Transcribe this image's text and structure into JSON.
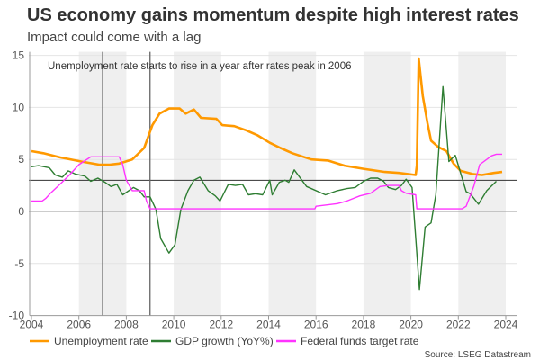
{
  "chart_data": {
    "type": "line",
    "title": "US economy gains momentum despite high interest rates",
    "subtitle": "Impact could come with a lag",
    "annotation": "Unemployment rate starts to rise in a year after rates peak in 2006",
    "source": "Source: LSEG Datastream",
    "xlim": [
      2004,
      2024
    ],
    "ylim": [
      -10,
      15
    ],
    "x_ticks": [
      2004,
      2006,
      2008,
      2010,
      2012,
      2014,
      2016,
      2018,
      2020,
      2022,
      2024
    ],
    "y_ticks": [
      -10,
      -5,
      0,
      5,
      10,
      15
    ],
    "grid": true,
    "shaded_periods": [
      [
        2006,
        2008
      ],
      [
        2010,
        2012
      ],
      [
        2014,
        2016
      ],
      [
        2018,
        2020
      ],
      [
        2022,
        2024
      ]
    ],
    "vertical_markers": [
      2007,
      2009
    ],
    "reference_line_y": 3,
    "legend_position": "bottom",
    "series": [
      {
        "name": "Unemployment rate",
        "color": "#FF9900",
        "points": [
          [
            2004,
            5.8
          ],
          [
            2004.5,
            5.6
          ],
          [
            2005.2,
            5.2
          ],
          [
            2006.1,
            4.8
          ],
          [
            2006.85,
            4.5
          ],
          [
            2007.3,
            4.5
          ],
          [
            2007.7,
            4.6
          ],
          [
            2008.25,
            5.0
          ],
          [
            2008.75,
            6.1
          ],
          [
            2009.1,
            8.3
          ],
          [
            2009.4,
            9.4
          ],
          [
            2009.8,
            9.9
          ],
          [
            2010.25,
            9.9
          ],
          [
            2010.5,
            9.4
          ],
          [
            2010.85,
            9.8
          ],
          [
            2011.15,
            9.0
          ],
          [
            2011.8,
            8.9
          ],
          [
            2012.05,
            8.3
          ],
          [
            2012.55,
            8.2
          ],
          [
            2013.05,
            7.8
          ],
          [
            2013.55,
            7.3
          ],
          [
            2014.05,
            6.6
          ],
          [
            2014.5,
            6.1
          ],
          [
            2015,
            5.6
          ],
          [
            2015.8,
            5.0
          ],
          [
            2016.5,
            4.9
          ],
          [
            2017.2,
            4.4
          ],
          [
            2018,
            4.1
          ],
          [
            2018.9,
            3.8
          ],
          [
            2019.5,
            3.7
          ],
          [
            2020.2,
            3.5
          ],
          [
            2020.25,
            4.4
          ],
          [
            2020.33,
            14.7
          ],
          [
            2020.5,
            11.1
          ],
          [
            2020.7,
            8.5
          ],
          [
            2020.85,
            6.8
          ],
          [
            2021.15,
            6.2
          ],
          [
            2021.5,
            5.8
          ],
          [
            2021.8,
            4.6
          ],
          [
            2022.1,
            3.9
          ],
          [
            2022.6,
            3.6
          ],
          [
            2023,
            3.5
          ],
          [
            2023.5,
            3.7
          ],
          [
            2023.85,
            3.8
          ]
        ]
      },
      {
        "name": "GDP growth  (YoY%)",
        "color": "#2E7D32",
        "points": [
          [
            2004,
            4.3
          ],
          [
            2004.3,
            4.4
          ],
          [
            2004.75,
            4.2
          ],
          [
            2005,
            3.5
          ],
          [
            2005.3,
            3.3
          ],
          [
            2005.55,
            3.9
          ],
          [
            2005.85,
            3.6
          ],
          [
            2006.25,
            3.4
          ],
          [
            2006.5,
            2.9
          ],
          [
            2006.8,
            3.2
          ],
          [
            2007.1,
            2.8
          ],
          [
            2007.35,
            2.4
          ],
          [
            2007.6,
            2.6
          ],
          [
            2007.85,
            1.6
          ],
          [
            2008.3,
            2.3
          ],
          [
            2008.55,
            2.0
          ],
          [
            2008.75,
            1.4
          ],
          [
            2009.0,
            1.4
          ],
          [
            2009.25,
            0.2
          ],
          [
            2009.45,
            -2.6
          ],
          [
            2009.8,
            -4.0
          ],
          [
            2010.05,
            -3.2
          ],
          [
            2010.3,
            0.2
          ],
          [
            2010.6,
            2.0
          ],
          [
            2010.85,
            3.0
          ],
          [
            2011.1,
            3.3
          ],
          [
            2011.45,
            2.0
          ],
          [
            2011.75,
            1.5
          ],
          [
            2011.95,
            1.0
          ],
          [
            2012.3,
            2.6
          ],
          [
            2012.6,
            2.5
          ],
          [
            2012.9,
            2.6
          ],
          [
            2013.15,
            1.6
          ],
          [
            2013.45,
            1.7
          ],
          [
            2013.75,
            1.6
          ],
          [
            2014.05,
            3.0
          ],
          [
            2014.15,
            1.6
          ],
          [
            2014.45,
            2.8
          ],
          [
            2014.7,
            3.0
          ],
          [
            2014.85,
            2.8
          ],
          [
            2015.08,
            4.0
          ],
          [
            2015.6,
            2.4
          ],
          [
            2016.4,
            1.6
          ],
          [
            2016.9,
            2.0
          ],
          [
            2017.3,
            2.2
          ],
          [
            2017.65,
            2.3
          ],
          [
            2018,
            2.9
          ],
          [
            2018.3,
            3.2
          ],
          [
            2018.6,
            3.2
          ],
          [
            2018.85,
            2.9
          ],
          [
            2019.05,
            2.3
          ],
          [
            2019.35,
            2.1
          ],
          [
            2019.6,
            2.5
          ],
          [
            2019.8,
            3.1
          ],
          [
            2020.05,
            2.3
          ],
          [
            2020.36,
            -7.5
          ],
          [
            2020.6,
            -1.5
          ],
          [
            2020.85,
            -1.1
          ],
          [
            2021.05,
            1.6
          ],
          [
            2021.35,
            12.0
          ],
          [
            2021.6,
            4.8
          ],
          [
            2021.87,
            5.4
          ],
          [
            2022.33,
            1.9
          ],
          [
            2022.5,
            1.7
          ],
          [
            2022.85,
            0.7
          ],
          [
            2023.2,
            2.0
          ],
          [
            2023.6,
            2.9
          ]
        ]
      },
      {
        "name": "Federal funds target rate",
        "color": "#FF33FF",
        "points": [
          [
            2004,
            1.0
          ],
          [
            2004.45,
            1.0
          ],
          [
            2004.6,
            1.25
          ],
          [
            2004.8,
            1.75
          ],
          [
            2005.2,
            2.6
          ],
          [
            2005.6,
            3.5
          ],
          [
            2006.0,
            4.5
          ],
          [
            2006.5,
            5.25
          ],
          [
            2007.7,
            5.25
          ],
          [
            2007.85,
            4.5
          ],
          [
            2008.0,
            3.0
          ],
          [
            2008.25,
            2.0
          ],
          [
            2008.75,
            2.0
          ],
          [
            2008.85,
            1.0
          ],
          [
            2009.0,
            0.25
          ],
          [
            2015.95,
            0.25
          ],
          [
            2016.0,
            0.5
          ],
          [
            2016.9,
            0.75
          ],
          [
            2017.3,
            1.0
          ],
          [
            2017.85,
            1.5
          ],
          [
            2018.3,
            1.75
          ],
          [
            2018.7,
            2.4
          ],
          [
            2019.07,
            2.5
          ],
          [
            2019.5,
            2.5
          ],
          [
            2019.6,
            2.0
          ],
          [
            2019.8,
            1.75
          ],
          [
            2020.2,
            1.6
          ],
          [
            2020.25,
            0.25
          ],
          [
            2022.15,
            0.25
          ],
          [
            2022.33,
            0.5
          ],
          [
            2022.65,
            2.4
          ],
          [
            2022.9,
            4.5
          ],
          [
            2023.4,
            5.35
          ],
          [
            2023.6,
            5.5
          ],
          [
            2023.85,
            5.5
          ]
        ]
      }
    ]
  }
}
